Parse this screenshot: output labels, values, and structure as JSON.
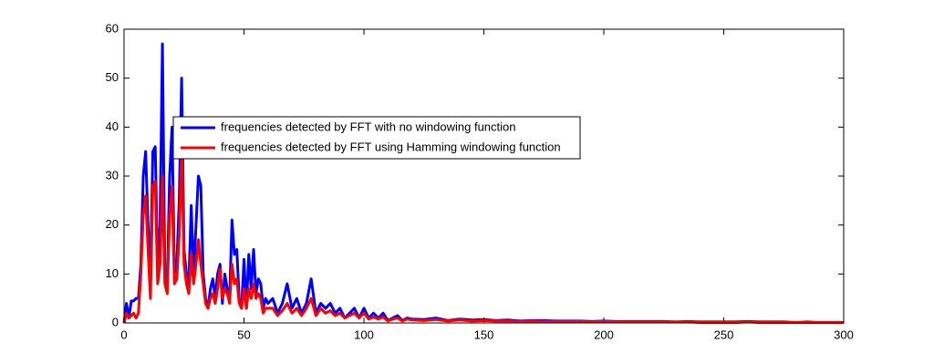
{
  "chart_data": {
    "type": "line",
    "x": [
      0,
      1,
      2,
      3,
      4,
      5,
      6,
      7,
      8,
      9,
      10,
      11,
      12,
      13,
      14,
      15,
      16,
      17,
      18,
      19,
      20,
      21,
      22,
      23,
      24,
      25,
      26,
      27,
      28,
      29,
      30,
      31,
      32,
      33,
      34,
      35,
      36,
      37,
      38,
      39,
      40,
      41,
      42,
      43,
      44,
      45,
      46,
      47,
      48,
      49,
      50,
      51,
      52,
      53,
      54,
      55,
      56,
      57,
      58,
      59,
      60,
      62,
      64,
      66,
      68,
      70,
      72,
      74,
      76,
      78,
      80,
      82,
      84,
      86,
      88,
      90,
      92,
      94,
      96,
      98,
      100,
      102,
      104,
      106,
      108,
      110,
      112,
      114,
      116,
      118,
      120,
      125,
      130,
      135,
      140,
      145,
      150,
      155,
      160,
      165,
      170,
      175,
      180,
      185,
      190,
      195,
      200,
      205,
      210,
      215,
      220,
      225,
      230,
      235,
      240,
      245,
      250,
      255,
      260,
      265,
      270,
      275,
      280,
      285,
      290,
      295,
      300
    ],
    "series": [
      {
        "name": "frequencies detected by FFT with no windowing function",
        "color": "#0000ff",
        "values": [
          0,
          4,
          1,
          4.5,
          4.5,
          5,
          5,
          12,
          30,
          35,
          20,
          10,
          35,
          36,
          12,
          20,
          57,
          10,
          8,
          30,
          40,
          10,
          12,
          25,
          50,
          15,
          10,
          8,
          24,
          10,
          20,
          30,
          28,
          10,
          5,
          3,
          7,
          9,
          5,
          10,
          12,
          4,
          10,
          7,
          5,
          21,
          14,
          15,
          5,
          3,
          13,
          3,
          14,
          7,
          15,
          6,
          9,
          8,
          3,
          5,
          4,
          5,
          2,
          4,
          8,
          3,
          5,
          2,
          4,
          9,
          2,
          4,
          3,
          4,
          2,
          3,
          1,
          2,
          3,
          1,
          3,
          1,
          2,
          1,
          2,
          0.5,
          1,
          1.5,
          0.5,
          1,
          0.8,
          0.7,
          1,
          0.5,
          0.8,
          0.6,
          0.7,
          0.5,
          0.6,
          0.4,
          0.5,
          0.5,
          0.4,
          0.4,
          0.4,
          0.3,
          0.4,
          0.3,
          0.3,
          0.3,
          0.3,
          0.3,
          0.2,
          0.3,
          0.2,
          0.2,
          0.2,
          0.2,
          0.3,
          0.2,
          0.2,
          0.2,
          0.1,
          0.2,
          0.1,
          0.1,
          0.1
        ]
      },
      {
        "name": "frequencies detected by FFT using Hamming windowing function",
        "color": "#ff0000",
        "values": [
          0,
          2,
          1,
          1.5,
          2,
          1,
          2,
          10,
          22,
          26,
          15,
          5,
          28,
          29,
          8,
          12,
          30,
          8,
          6,
          22,
          28,
          8,
          9,
          18,
          35,
          12,
          8,
          6,
          14,
          8,
          12,
          17,
          12,
          8,
          4,
          3,
          5,
          6,
          4,
          7,
          11,
          5,
          7,
          6,
          4,
          12,
          8,
          9,
          4,
          3,
          7,
          3,
          7,
          5,
          8,
          5,
          6,
          5,
          2,
          3,
          3,
          3,
          1.5,
          2.5,
          4,
          2,
          3,
          1.5,
          3,
          5,
          1.5,
          3,
          2,
          2.5,
          1.5,
          2,
          1,
          1.5,
          2,
          1,
          2,
          0.8,
          1.2,
          0.8,
          1.2,
          0.4,
          0.8,
          1,
          0.4,
          0.8,
          0.6,
          0.5,
          0.7,
          0.4,
          0.6,
          0.4,
          0.5,
          0.4,
          0.4,
          0.3,
          0.4,
          0.3,
          0.3,
          0.3,
          0.3,
          0.2,
          0.3,
          0.2,
          0.2,
          0.2,
          0.2,
          0.2,
          0.2,
          0.2,
          0.1,
          0.1,
          0.1,
          0.1,
          0.2,
          0.1,
          0.1,
          0.1,
          0.1,
          0.1,
          0.1,
          0.1,
          0.1
        ]
      }
    ],
    "xlim": [
      0,
      300
    ],
    "xticks": [
      0,
      50,
      100,
      150,
      200,
      250,
      300
    ],
    "ylim": [
      0,
      60
    ],
    "yticks": [
      0,
      10,
      20,
      30,
      40,
      50,
      60
    ],
    "grid": false,
    "legend": "upper left"
  }
}
